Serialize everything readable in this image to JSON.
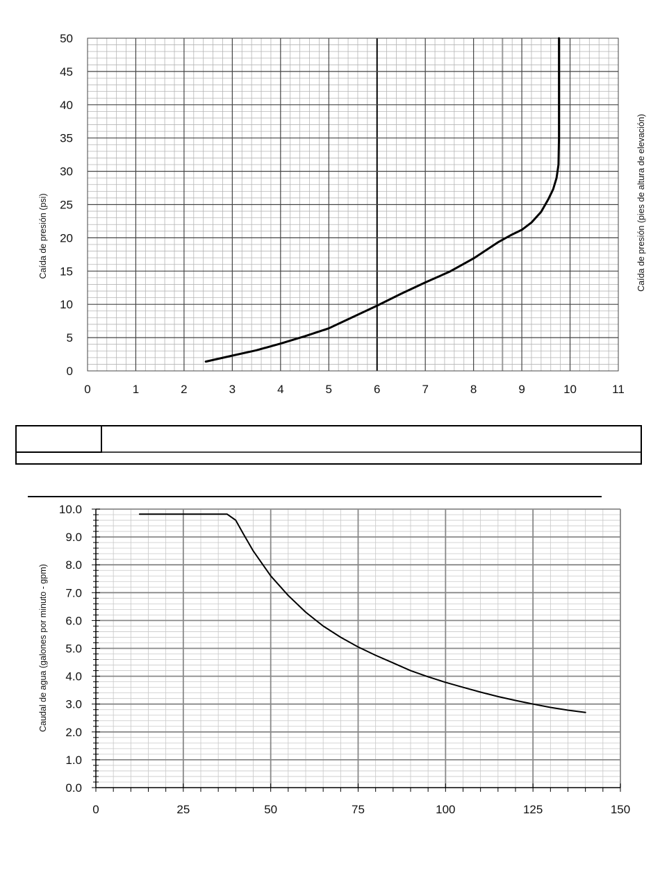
{
  "chart_data": [
    {
      "type": "line",
      "title": "",
      "xlabel": "",
      "ylabel": "Caída de presión (psi)",
      "ylabel_right": "Caída de presión (pies de altura de elevación)",
      "xlim": [
        0,
        11
      ],
      "ylim": [
        0,
        50
      ],
      "x_ticks": [
        "0",
        "1",
        "2",
        "3",
        "4",
        "5",
        "6",
        "7",
        "8",
        "9",
        "10",
        "11"
      ],
      "y_ticks": [
        "0",
        "5",
        "10",
        "15",
        "20",
        "25",
        "30",
        "35",
        "40",
        "45",
        "50"
      ],
      "grid": true,
      "series": [
        {
          "x": [
            2.45,
            3.0,
            3.5,
            4.0,
            4.5,
            5.0,
            5.5,
            6.0,
            6.5,
            7.0,
            7.5,
            8.0,
            8.5,
            8.8,
            9.0,
            9.2,
            9.4,
            9.55,
            9.65,
            9.72,
            9.76,
            9.77,
            9.77,
            9.77,
            9.77
          ],
          "y": [
            1.4,
            2.3,
            3.1,
            4.1,
            5.2,
            6.4,
            8.1,
            9.8,
            11.6,
            13.3,
            14.9,
            16.9,
            19.3,
            20.5,
            21.2,
            22.3,
            23.9,
            25.8,
            27.3,
            29.0,
            31.0,
            35.0,
            40.0,
            45.0,
            50.0
          ]
        }
      ]
    },
    {
      "type": "line",
      "title": "",
      "xlabel": "",
      "ylabel": "Caudal de agua (galones por minuto - gpm)",
      "xlim": [
        0,
        150
      ],
      "ylim": [
        0,
        10
      ],
      "x_ticks": [
        "0",
        "25",
        "50",
        "75",
        "100",
        "125",
        "150"
      ],
      "y_ticks": [
        "0.0",
        "1.0",
        "2.0",
        "3.0",
        "4.0",
        "5.0",
        "6.0",
        "7.0",
        "8.0",
        "9.0",
        "10.0"
      ],
      "grid": true,
      "series": [
        {
          "x": [
            12.5,
            25,
            37.5,
            40,
            42,
            45,
            50,
            55,
            60,
            65,
            70,
            75,
            80,
            85,
            90,
            95,
            100,
            105,
            110,
            115,
            120,
            125,
            130,
            135,
            140
          ],
          "y": [
            9.82,
            9.82,
            9.82,
            9.6,
            9.15,
            8.5,
            7.6,
            6.9,
            6.3,
            5.8,
            5.4,
            5.05,
            4.75,
            4.48,
            4.2,
            3.98,
            3.78,
            3.6,
            3.43,
            3.27,
            3.13,
            3.0,
            2.88,
            2.78,
            2.7
          ]
        }
      ]
    }
  ]
}
